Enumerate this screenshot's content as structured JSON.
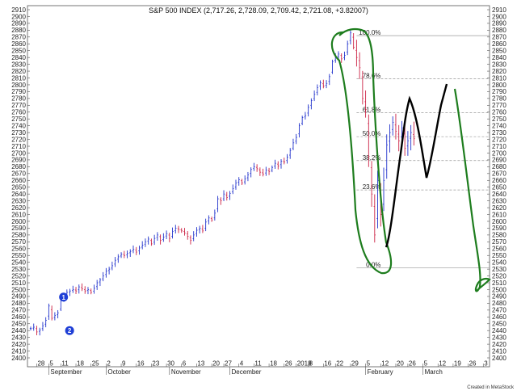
{
  "chart_data": {
    "type": "ohlc",
    "title": "S&P 500 INDEX (2,717.26, 2,728.09, 2,709.42, 2,721.08, +3.82007)",
    "credit": "Created in MetaStock",
    "ylim": [
      2400,
      2910
    ],
    "y_ticks": [
      2400,
      2410,
      2420,
      2430,
      2440,
      2450,
      2460,
      2470,
      2480,
      2490,
      2500,
      2510,
      2520,
      2530,
      2540,
      2550,
      2560,
      2570,
      2580,
      2590,
      2600,
      2610,
      2620,
      2630,
      2640,
      2650,
      2660,
      2670,
      2680,
      2690,
      2700,
      2710,
      2720,
      2730,
      2740,
      2750,
      2760,
      2770,
      2780,
      2790,
      2800,
      2810,
      2820,
      2830,
      2840,
      2850,
      2860,
      2870,
      2880,
      2890,
      2900,
      2910
    ],
    "x_day_ticks": [
      {
        "label": "28",
        "i": 2
      },
      {
        "label": "5",
        "i": 6
      },
      {
        "label": "11",
        "i": 10
      },
      {
        "label": "18",
        "i": 15
      },
      {
        "label": "25",
        "i": 20
      },
      {
        "label": "2",
        "i": 25
      },
      {
        "label": "9",
        "i": 30
      },
      {
        "label": "16",
        "i": 35
      },
      {
        "label": "23",
        "i": 40
      },
      {
        "label": "30",
        "i": 45
      },
      {
        "label": "6",
        "i": 50
      },
      {
        "label": "13",
        "i": 55
      },
      {
        "label": "20",
        "i": 60
      },
      {
        "label": "27",
        "i": 64
      },
      {
        "label": "4",
        "i": 69
      },
      {
        "label": "11",
        "i": 74
      },
      {
        "label": "18",
        "i": 79
      },
      {
        "label": "26",
        "i": 84
      },
      {
        "label": "2018",
        "i": 88
      },
      {
        "label": "8",
        "i": 92
      },
      {
        "label": "16",
        "i": 97
      },
      {
        "label": "22",
        "i": 101
      },
      {
        "label": "29",
        "i": 106
      },
      {
        "label": "5",
        "i": 111
      },
      {
        "label": "12",
        "i": 116
      },
      {
        "label": "20",
        "i": 121
      },
      {
        "label": "26",
        "i": 125
      },
      {
        "label": "5",
        "i": 130
      },
      {
        "label": "12",
        "i": 135
      },
      {
        "label": "19",
        "i": 140
      },
      {
        "label": "26",
        "i": 145
      },
      {
        "label": "3",
        "i": 150
      }
    ],
    "x_month_labels": [
      {
        "label": "September",
        "i": 6
      },
      {
        "label": "October",
        "i": 25
      },
      {
        "label": "November",
        "i": 46
      },
      {
        "label": "December",
        "i": 66
      },
      {
        "label": "February",
        "i": 111
      },
      {
        "label": "March",
        "i": 130
      }
    ],
    "x_count": 152,
    "closes": [
      2443,
      2445,
      2438,
      2441,
      2447,
      2455,
      2476,
      2458,
      2462,
      2466,
      2484,
      2490,
      2496,
      2498,
      2500,
      2498,
      2504,
      2501,
      2498,
      2500,
      2496,
      2502,
      2510,
      2514,
      2520,
      2527,
      2530,
      2535,
      2543,
      2548,
      2552,
      2550,
      2553,
      2556,
      2559,
      2555,
      2561,
      2565,
      2570,
      2574,
      2567,
      2575,
      2580,
      2572,
      2577,
      2582,
      2575,
      2585,
      2590,
      2588,
      2586,
      2583,
      2578,
      2572,
      2580,
      2587,
      2590,
      2586,
      2599,
      2605,
      2602,
      2612,
      2633,
      2630,
      2640,
      2635,
      2641,
      2648,
      2656,
      2661,
      2656,
      2662,
      2668,
      2676,
      2680,
      2677,
      2672,
      2669,
      2675,
      2673,
      2679,
      2685,
      2681,
      2688,
      2687,
      2694,
      2704,
      2715,
      2723,
      2740,
      2752,
      2755,
      2767,
      2777,
      2786,
      2796,
      2803,
      2798,
      2802,
      2812,
      2834,
      2841,
      2845,
      2838,
      2843,
      2860,
      2876,
      2855,
      2840,
      2825,
      2780,
      2764,
      2695,
      2640,
      2580,
      2660,
      2610,
      2660,
      2712,
      2730,
      2745,
      2732,
      2718,
      2737,
      2707,
      2718,
      2730,
      2721,
      2713,
      2716,
      2719,
      2723,
      2730,
      2735,
      2740,
      2745,
      2748,
      2752,
      2755,
      2760,
      2765,
      2770,
      2775,
      2780,
      2785,
      2790,
      2795,
      2800,
      2805,
      2810,
      2815,
      2820
    ],
    "last_bar_index": 127,
    "fib_levels": [
      {
        "label": "100.0%",
        "value": 2872
      },
      {
        "label": "78.6%",
        "value": 2809
      },
      {
        "label": "61.8%",
        "value": 2759
      },
      {
        "label": "50.0%",
        "value": 2724
      },
      {
        "label": "38.2%",
        "value": 2689
      },
      {
        "label": "23.6%",
        "value": 2646
      },
      {
        "label": "0.0%",
        "value": 2532
      }
    ],
    "fib_start_i": 108,
    "markers": [
      {
        "label": "1",
        "i": 5,
        "value": 2489
      },
      {
        "label": "2",
        "i": 7,
        "value": 2440
      }
    ],
    "colors": {
      "up_bar": "#2233cc",
      "down_bar": "#cc2244",
      "grid": "#999999",
      "marker": "#1f3fd6",
      "annotation_green": "#1e7d1e",
      "annotation_black": "#000000"
    }
  }
}
